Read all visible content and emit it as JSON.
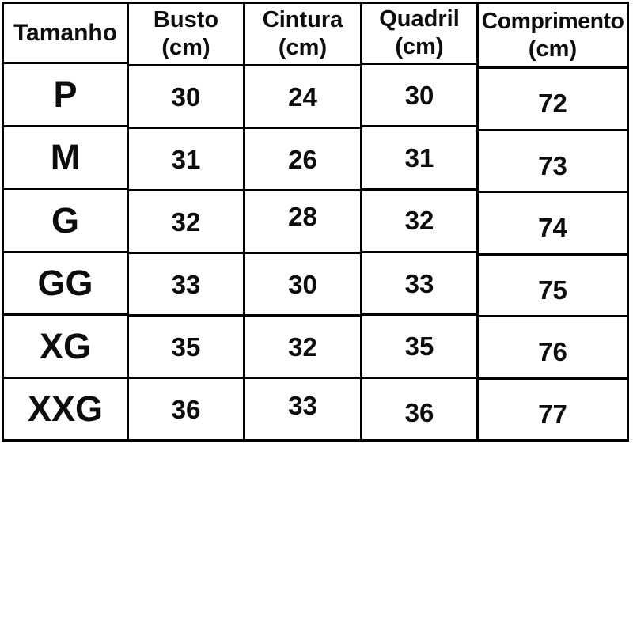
{
  "page": {
    "background": "#ffffff",
    "table_border_color": "#000000",
    "text_color": "#0d0d0d"
  },
  "table": {
    "columns": [
      {
        "label": "Tamanho",
        "unit": ""
      },
      {
        "label": "Busto",
        "unit": "(cm)"
      },
      {
        "label": "Cintura",
        "unit": "(cm)"
      },
      {
        "label": "Quadril",
        "unit": "(cm)"
      },
      {
        "label": "Comprimento",
        "unit": "(cm)"
      }
    ]
  },
  "chart_data": {
    "type": "table",
    "title": "",
    "columns": [
      "Tamanho",
      "Busto (cm)",
      "Cintura (cm)",
      "Quadril (cm)",
      "Comprimento (cm)"
    ],
    "rows": [
      [
        "P",
        "30",
        "24",
        "30",
        "72"
      ],
      [
        "M",
        "31",
        "26",
        "31",
        "73"
      ],
      [
        "G",
        "32",
        "28",
        "32",
        "74"
      ],
      [
        "GG",
        "33",
        "30",
        "33",
        "75"
      ],
      [
        "XG",
        "35",
        "32",
        "35",
        "76"
      ],
      [
        "XXG",
        "36",
        "33",
        "36",
        "77"
      ]
    ]
  }
}
